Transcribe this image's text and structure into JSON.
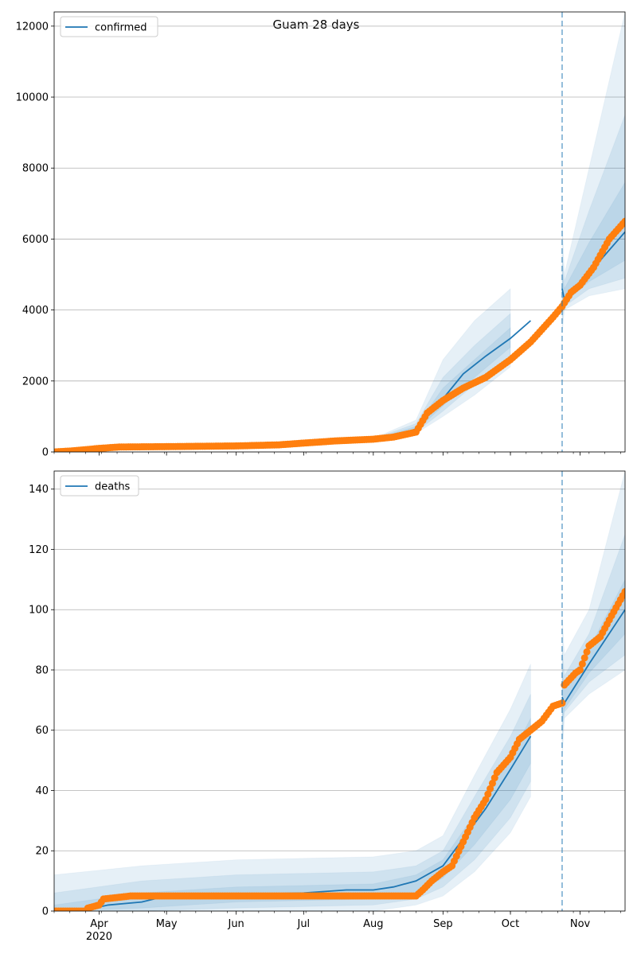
{
  "title": "Guam 28 days",
  "colors": {
    "model": "#1f77b4",
    "observed": "#ff7f0e",
    "band": "#1f77b4",
    "grid": "#b0b0b0",
    "vline": "#1f77b4"
  },
  "chart_data": [
    {
      "type": "line",
      "legend": "confirmed",
      "legend_position": "top-left",
      "grid": "y",
      "ylim": [
        0,
        12400
      ],
      "yticks": [
        0,
        2000,
        4000,
        6000,
        8000,
        10000,
        12000
      ],
      "ytick_labels": [
        "0",
        "2000",
        "4000",
        "6000",
        "8000",
        "10000",
        "12000"
      ],
      "xlim": [
        "2020-03-12",
        "2020-11-21"
      ],
      "xticks": [
        "2020-04-01",
        "2020-05-01",
        "2020-06-01",
        "2020-07-01",
        "2020-08-01",
        "2020-09-01",
        "2020-10-01",
        "2020-11-01"
      ],
      "xtick_labels": [
        "Apr",
        "May",
        "Jun",
        "Jul",
        "Aug",
        "Sep",
        "Oct",
        "Nov"
      ],
      "xtick_sublabel": "2020",
      "forecast_start": "2020-10-24",
      "model": {
        "x": [
          "2020-03-12",
          "2020-04-01",
          "2020-05-01",
          "2020-06-01",
          "2020-07-01",
          "2020-07-20",
          "2020-08-01",
          "2020-08-10",
          "2020-08-20",
          "2020-09-01",
          "2020-09-10",
          "2020-09-20",
          "2020-10-01",
          "2020-10-10",
          "2020-10-24",
          "2020-10-25",
          "2020-11-01",
          "2020-11-10",
          "2020-11-21"
        ],
        "y": [
          0,
          80,
          150,
          170,
          230,
          300,
          350,
          420,
          650,
          1500,
          2200,
          2700,
          3200,
          3700,
          4600,
          4300,
          4800,
          5400,
          6200
        ]
      },
      "bands": [
        {
          "x": [
            "2020-08-01",
            "2020-08-20",
            "2020-09-01",
            "2020-09-15",
            "2020-10-01",
            "2020-10-24",
            "2020-10-25",
            "2020-11-05",
            "2020-11-21"
          ],
          "lower": [
            330,
            520,
            1000,
            1600,
            2400,
            3300,
            4000,
            4400,
            4600
          ],
          "upper": [
            380,
            900,
            2600,
            3700,
            4600,
            6600,
            5000,
            8000,
            12400
          ]
        },
        {
          "x": [
            "2020-08-01",
            "2020-08-20",
            "2020-09-01",
            "2020-09-15",
            "2020-10-01",
            "2020-10-24",
            "2020-10-25",
            "2020-11-05",
            "2020-11-21"
          ],
          "lower": [
            340,
            560,
            1150,
            1900,
            2700,
            3700,
            4100,
            4600,
            4900
          ],
          "upper": [
            370,
            800,
            2100,
            3000,
            3900,
            5600,
            4800,
            6800,
            9500
          ]
        },
        {
          "x": [
            "2020-08-01",
            "2020-08-20",
            "2020-09-01",
            "2020-09-15",
            "2020-10-01",
            "2020-10-24",
            "2020-10-25",
            "2020-11-05",
            "2020-11-21"
          ],
          "lower": [
            345,
            600,
            1300,
            2100,
            2950,
            4000,
            4200,
            4800,
            5400
          ],
          "upper": [
            360,
            720,
            1800,
            2600,
            3500,
            5100,
            4600,
            5900,
            7600
          ]
        }
      ],
      "observed": {
        "x": [
          "2020-03-12",
          "2020-03-20",
          "2020-04-01",
          "2020-04-10",
          "2020-05-01",
          "2020-06-01",
          "2020-06-20",
          "2020-07-01",
          "2020-07-15",
          "2020-08-01",
          "2020-08-10",
          "2020-08-20",
          "2020-08-25",
          "2020-09-01",
          "2020-09-10",
          "2020-09-20",
          "2020-10-01",
          "2020-10-10",
          "2020-10-20",
          "2020-10-24",
          "2020-10-28",
          "2020-11-01",
          "2020-11-07",
          "2020-11-14",
          "2020-11-21"
        ],
        "y": [
          0,
          30,
          100,
          140,
          150,
          170,
          200,
          250,
          310,
          360,
          420,
          560,
          1100,
          1450,
          1800,
          2100,
          2600,
          3100,
          3800,
          4100,
          4500,
          4700,
          5200,
          6000,
          6500
        ]
      }
    },
    {
      "type": "line",
      "legend": "deaths",
      "legend_position": "top-left",
      "grid": "y",
      "ylim": [
        0,
        146
      ],
      "yticks": [
        0,
        20,
        40,
        60,
        80,
        100,
        120,
        140
      ],
      "ytick_labels": [
        "0",
        "20",
        "40",
        "60",
        "80",
        "100",
        "120",
        "140"
      ],
      "xlim": [
        "2020-03-12",
        "2020-11-21"
      ],
      "xticks": [
        "2020-04-01",
        "2020-05-01",
        "2020-06-01",
        "2020-07-01",
        "2020-08-01",
        "2020-09-01",
        "2020-10-01",
        "2020-11-01"
      ],
      "xtick_labels": [
        "Apr",
        "May",
        "Jun",
        "Jul",
        "Aug",
        "Sep",
        "Oct",
        "Nov"
      ],
      "xtick_sublabel": "2020",
      "forecast_start": "2020-10-24",
      "model": {
        "x": [
          "2020-03-12",
          "2020-03-30",
          "2020-04-05",
          "2020-04-20",
          "2020-05-01",
          "2020-07-01",
          "2020-07-20",
          "2020-08-01",
          "2020-08-10",
          "2020-08-20",
          "2020-09-01",
          "2020-09-10",
          "2020-09-20",
          "2020-10-01",
          "2020-10-10",
          "2020-10-24",
          "2020-10-25",
          "2020-11-05",
          "2020-11-21"
        ],
        "y": [
          0,
          1,
          2,
          3,
          5,
          6,
          7,
          7,
          8,
          10,
          15,
          24,
          34,
          47,
          58,
          71,
          69,
          82,
          100
        ]
      },
      "bands": [
        {
          "x": [
            "2020-03-12",
            "2020-04-20",
            "2020-06-01",
            "2020-08-01",
            "2020-08-20",
            "2020-09-01",
            "2020-09-15",
            "2020-10-01",
            "2020-10-10",
            "2020-10-24",
            "2020-10-25",
            "2020-11-05",
            "2020-11-21"
          ],
          "lower": [
            0,
            0,
            0,
            0,
            2,
            5,
            13,
            26,
            38,
            50,
            64,
            72,
            80
          ],
          "upper": [
            12,
            15,
            17,
            18,
            20,
            25,
            45,
            67,
            82,
            98,
            85,
            100,
            146
          ]
        },
        {
          "x": [
            "2020-03-12",
            "2020-04-20",
            "2020-06-01",
            "2020-08-01",
            "2020-08-20",
            "2020-09-01",
            "2020-09-15",
            "2020-10-01",
            "2020-10-10",
            "2020-10-24",
            "2020-10-25",
            "2020-11-05",
            "2020-11-21"
          ],
          "lower": [
            0,
            0,
            1,
            2,
            4,
            8,
            17,
            31,
            43,
            56,
            66,
            76,
            85
          ],
          "upper": [
            6,
            10,
            12,
            13,
            15,
            20,
            38,
            58,
            72,
            88,
            78,
            92,
            125
          ]
        },
        {
          "x": [
            "2020-03-12",
            "2020-04-20",
            "2020-06-01",
            "2020-08-01",
            "2020-08-20",
            "2020-09-01",
            "2020-09-15",
            "2020-10-01",
            "2020-10-10",
            "2020-10-24",
            "2020-10-25",
            "2020-11-05",
            "2020-11-21"
          ],
          "lower": [
            0,
            1,
            3,
            4,
            6,
            11,
            22,
            37,
            49,
            62,
            67,
            79,
            92
          ],
          "upper": [
            2,
            6,
            8,
            9,
            12,
            17,
            32,
            51,
            64,
            80,
            74,
            87,
            110
          ]
        }
      ],
      "observed": {
        "x": [
          "2020-03-12",
          "2020-03-26",
          "2020-03-27",
          "2020-04-01",
          "2020-04-03",
          "2020-04-15",
          "2020-05-01",
          "2020-06-01",
          "2020-07-01",
          "2020-08-01",
          "2020-08-20",
          "2020-08-23",
          "2020-08-27",
          "2020-09-01",
          "2020-09-05",
          "2020-09-10",
          "2020-09-15",
          "2020-09-20",
          "2020-09-25",
          "2020-10-01",
          "2020-10-05",
          "2020-10-10",
          "2020-10-15",
          "2020-10-20",
          "2020-10-24",
          "2020-10-25",
          "2020-10-30",
          "2020-11-01",
          "2020-11-05",
          "2020-11-10",
          "2020-11-15",
          "2020-11-21"
        ],
        "y": [
          0,
          0,
          1,
          2,
          4,
          5,
          5,
          5,
          5,
          5,
          5,
          7,
          10,
          13,
          15,
          23,
          31,
          37,
          46,
          51,
          57,
          60,
          63,
          68,
          69,
          75,
          79,
          80,
          88,
          91,
          98,
          106
        ]
      }
    }
  ]
}
